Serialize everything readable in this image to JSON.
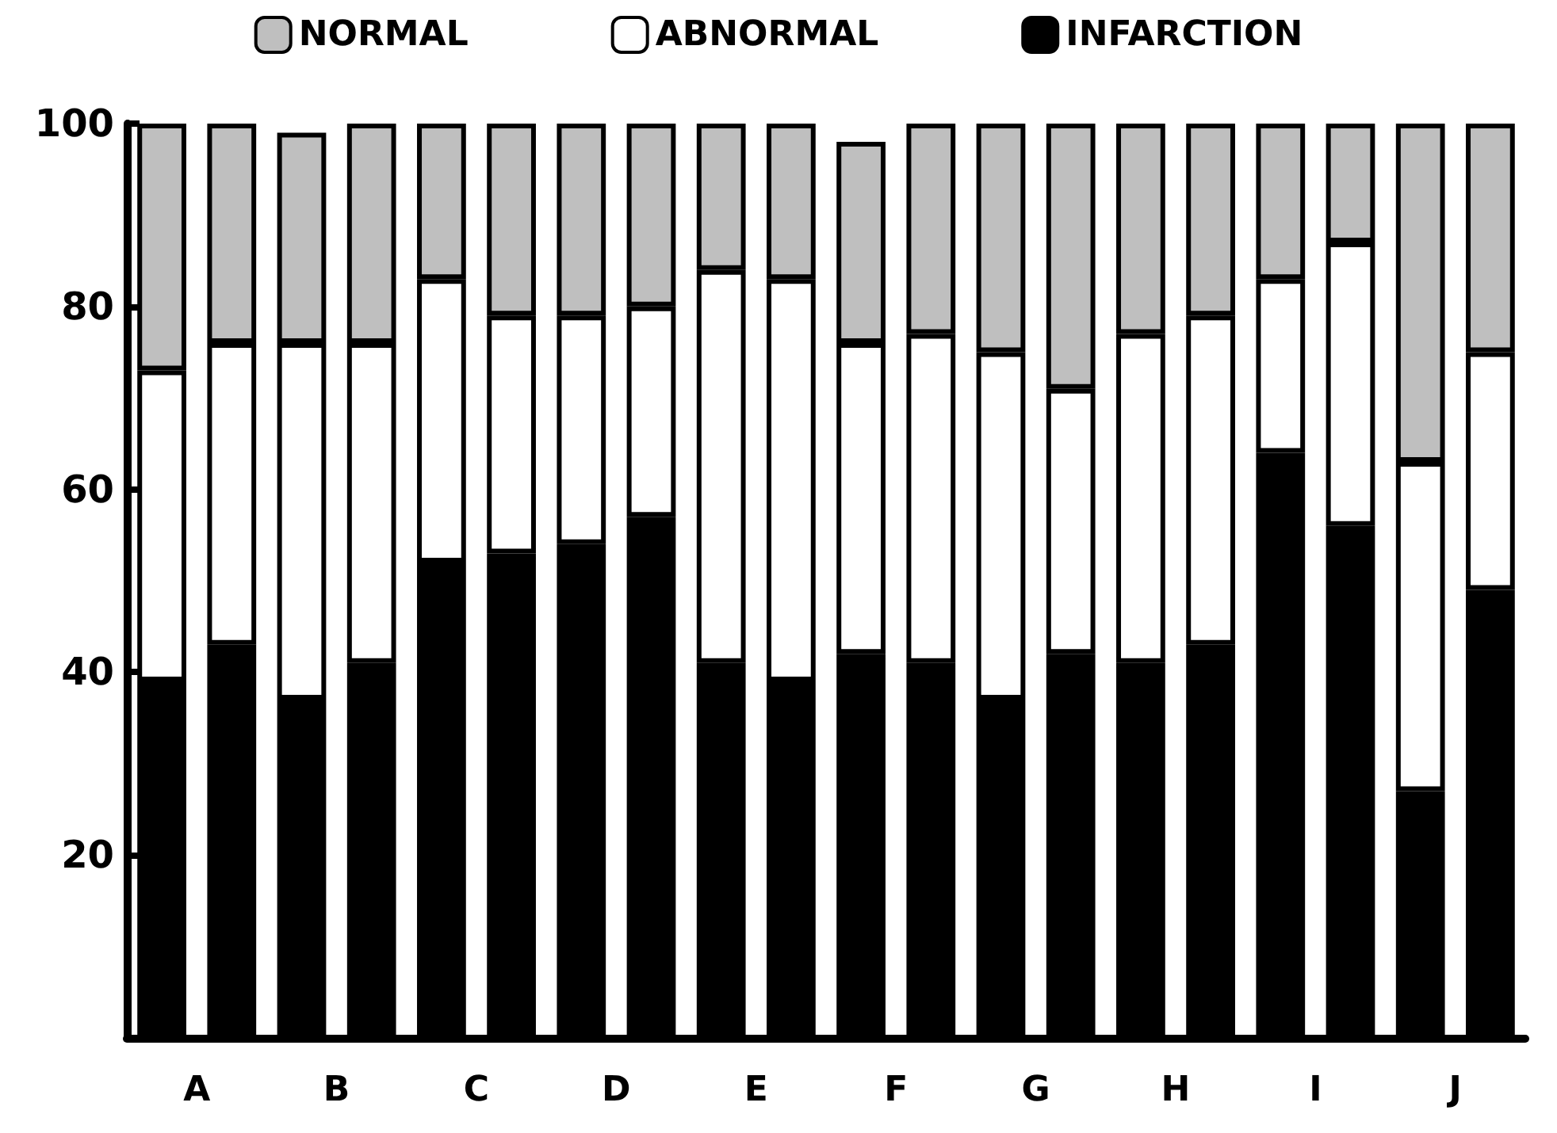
{
  "chart_data": {
    "type": "bar",
    "stacked": true,
    "categories": [
      "A",
      null,
      "B",
      null,
      "C",
      null,
      "D",
      null,
      "E",
      null,
      "F",
      null,
      "G",
      null,
      "H",
      null,
      "I",
      null,
      "J",
      null
    ],
    "series": [
      {
        "name": "INFARCTION",
        "color": "#000000",
        "values": [
          39,
          43,
          37,
          41,
          52,
          53,
          54,
          57,
          41,
          39,
          42,
          41,
          37,
          42,
          41,
          43,
          64,
          56,
          27,
          49
        ]
      },
      {
        "name": "ABNORMAL",
        "color": "#ffffff",
        "values": [
          34,
          33,
          39,
          35,
          31,
          26,
          25,
          23,
          43,
          44,
          34,
          36,
          38,
          29,
          36,
          36,
          19,
          31,
          36,
          26
        ]
      },
      {
        "name": "NORMAL",
        "color": "#bfbfbf",
        "values": [
          27,
          24,
          23,
          24,
          17,
          21,
          21,
          20,
          16,
          17,
          22,
          23,
          25,
          29,
          23,
          21,
          17,
          13,
          37,
          25
        ]
      }
    ],
    "ylim": [
      0,
      100
    ],
    "yticks": [
      {
        "value": 0,
        "label": null
      },
      20,
      40,
      60,
      80,
      100
    ],
    "grid": false,
    "legend": "top"
  }
}
